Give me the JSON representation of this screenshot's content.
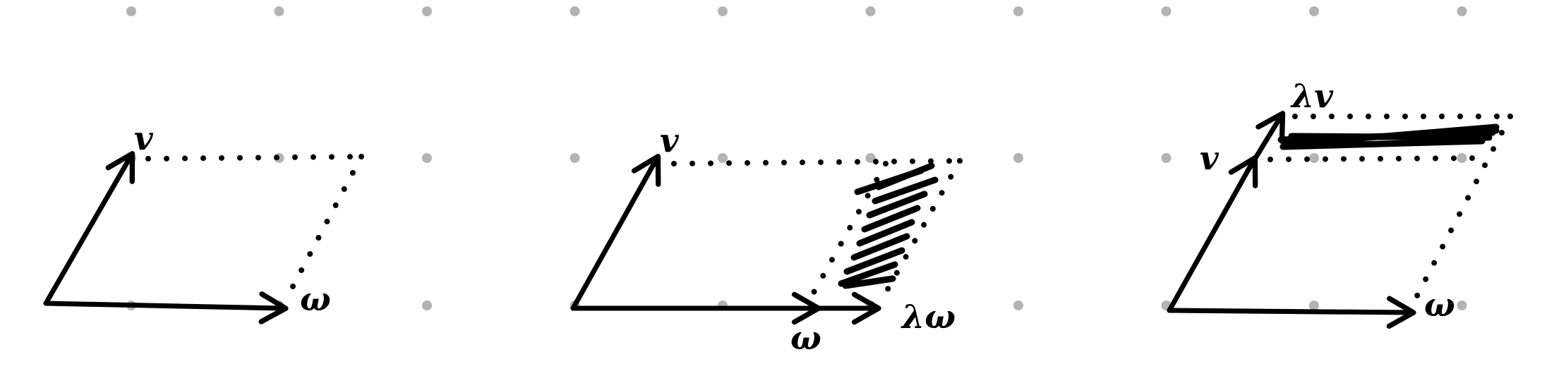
{
  "panels": [
    {
      "v_label": "v",
      "w_label": "ω"
    },
    {
      "v_label": "v",
      "w_label": "ω",
      "scaled_label": "λω"
    },
    {
      "v_label": "v",
      "w_label": "ω",
      "scaled_label": "λv"
    }
  ],
  "colors": {
    "ink": "#000000",
    "grid": "#b3b3b3",
    "background": "#ffffff"
  }
}
